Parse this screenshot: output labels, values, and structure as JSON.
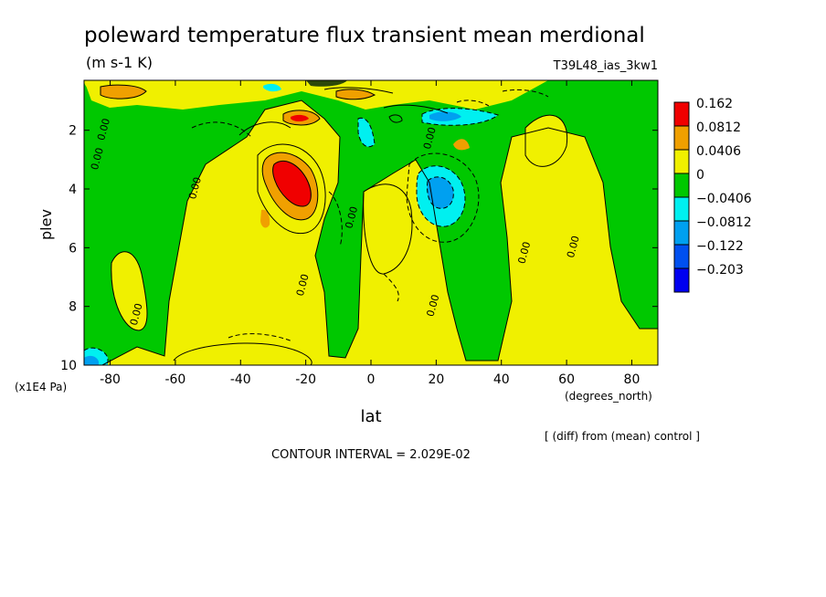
{
  "chart_data": {
    "type": "heatmap",
    "title": "poleward temperature flux transient mean merdional",
    "units": "(m s-1 K)",
    "run_label": "T39L48_ias_3kw1",
    "xlabel": "lat",
    "x_units": "(degrees_north)",
    "ylabel": "plev",
    "y_units": "(x1E4 Pa)",
    "x_ticks": [
      "-80",
      "-60",
      "-40",
      "-20",
      "0",
      "20",
      "40",
      "60",
      "80"
    ],
    "x_tick_values": [
      -80,
      -60,
      -40,
      -20,
      0,
      20,
      40,
      60,
      80
    ],
    "y_ticks": [
      "2",
      "4",
      "6",
      "8",
      "10"
    ],
    "y_tick_values": [
      2,
      4,
      6,
      8,
      10
    ],
    "xlim": [
      -88,
      88
    ],
    "ylim": [
      10,
      0.3
    ],
    "colorbar_labels": [
      "0.162",
      "0.0812",
      "0.0406",
      "0",
      "−0.0406",
      "−0.0812",
      "−0.122",
      "−0.203"
    ],
    "colorbar_colors": [
      "#f00000",
      "#f0a000",
      "#f0f000",
      "#00c800",
      "#00f0f0",
      "#00a0f0",
      "#0050f0",
      "#0000f0"
    ],
    "contour_labels": [
      {
        "text": "0.00",
        "lat": -81,
        "p": 2.0
      },
      {
        "text": "0.00",
        "lat": -83,
        "p": 3.0
      },
      {
        "text": "0.00",
        "lat": -53,
        "p": 4.0
      },
      {
        "text": "0.00",
        "lat": -71,
        "p": 8.3
      },
      {
        "text": "0.00",
        "lat": -20,
        "p": 7.3
      },
      {
        "text": "0.00",
        "lat": -5,
        "p": 5.0
      },
      {
        "text": "0.00",
        "lat": 19,
        "p": 2.3
      },
      {
        "text": "0.00",
        "lat": 20,
        "p": 8.0
      },
      {
        "text": "0.00",
        "lat": 48,
        "p": 6.2
      },
      {
        "text": "0.00",
        "lat": 63,
        "p": 6.0
      }
    ],
    "footnote": "[ (diff) from (mean) control ]",
    "contour_interval": "CONTOUR INTERVAL = 2.029E-02"
  }
}
